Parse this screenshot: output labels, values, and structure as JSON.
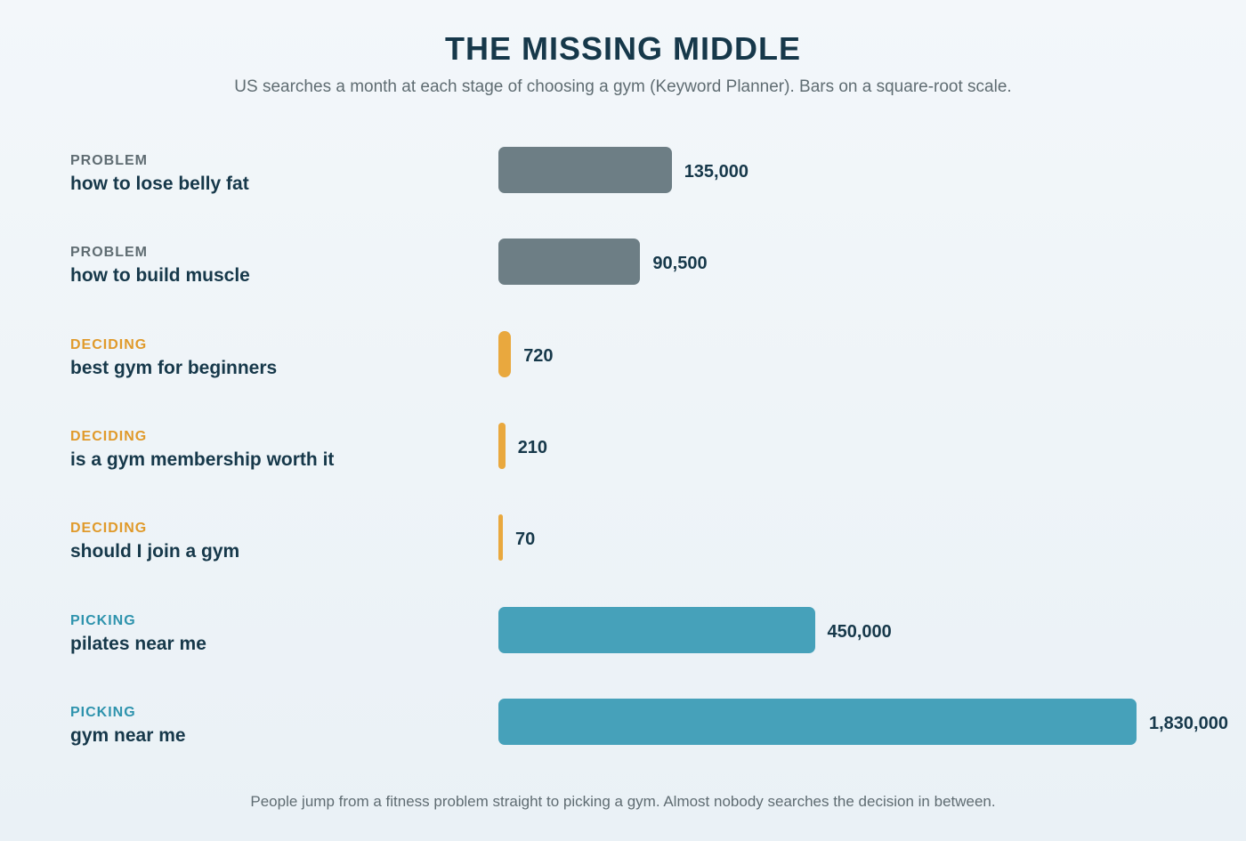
{
  "header": {
    "title": "THE MISSING MIDDLE",
    "subtitle": "US searches a month at each stage of choosing a gym (Keyword Planner). Bars on a square-root scale."
  },
  "footnote": "People jump from a fitness problem straight to picking a gym. Almost nobody searches the decision in between.",
  "colors": {
    "problem": "#6d7e85",
    "deciding": "#e9a83e",
    "picking": "#46a1ba",
    "deciding_label": "#e09a2b",
    "picking_label": "#2e93ad",
    "problem_label": "#5f6c72"
  },
  "chart_data": {
    "type": "bar",
    "orientation": "horizontal",
    "scale": "sqrt",
    "categories": [
      "how to lose belly fat",
      "how to build muscle",
      "best gym for beginners",
      "is a gym membership worth it",
      "should I join a gym",
      "pilates near me",
      "gym near me"
    ],
    "stages": [
      "PROBLEM",
      "PROBLEM",
      "DECIDING",
      "DECIDING",
      "DECIDING",
      "PICKING",
      "PICKING"
    ],
    "values": [
      135000,
      90500,
      720,
      210,
      70,
      450000,
      1830000
    ],
    "value_labels": [
      "135,000",
      "90,500",
      "720",
      "210",
      "70",
      "450,000",
      "1,830,000"
    ],
    "title": "THE MISSING MIDDLE",
    "xlabel": "",
    "ylabel": "",
    "grid": false,
    "legend": "none"
  }
}
